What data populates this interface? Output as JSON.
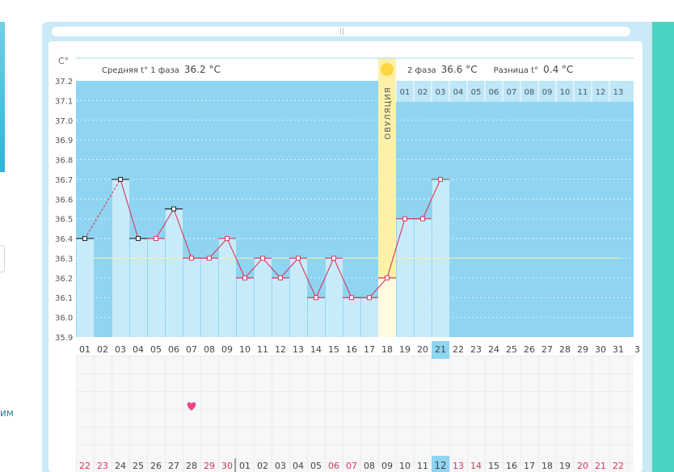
{
  "chart_data": {
    "type": "line",
    "y_unit": "C°",
    "ylim": [
      35.9,
      37.2
    ],
    "y_ticks": [
      "37.2",
      "37.1",
      "37.0",
      "36.9",
      "36.8",
      "36.7",
      "36.6",
      "36.5",
      "36.4",
      "36.3",
      "36.2",
      "36.1",
      "36.0",
      "35.9"
    ],
    "x": [
      "01",
      "02",
      "03",
      "04",
      "05",
      "06",
      "07",
      "08",
      "09",
      "10",
      "11",
      "12",
      "13",
      "14",
      "15",
      "16",
      "17",
      "18",
      "19",
      "20",
      "21",
      "22",
      "23",
      "24",
      "25",
      "26",
      "27",
      "28",
      "29",
      "30",
      "31"
    ],
    "values": [
      36.4,
      null,
      36.7,
      36.4,
      36.4,
      36.55,
      36.3,
      36.3,
      36.4,
      36.2,
      36.3,
      36.2,
      36.3,
      36.1,
      36.3,
      36.1,
      36.1,
      36.2,
      36.5,
      36.5,
      36.7,
      null,
      null,
      null,
      null,
      null,
      null,
      null,
      null,
      null,
      null
    ],
    "black_markers": [
      "01",
      "03",
      "04",
      "06"
    ],
    "dashed_segment": [
      "01",
      "03"
    ],
    "highlight_day": "21",
    "coverline": 36.3,
    "ovulation": {
      "day": "18",
      "label": "ОВУЛЯЦИЯ"
    },
    "phase1": {
      "label": "Средняя t° 1 фаза",
      "value": "36.2 °C"
    },
    "phase2": {
      "label": "2 фаза",
      "value": "36.6 °C"
    },
    "difference": {
      "label": "Разница t°",
      "value": "0.4 °C"
    },
    "phase2_days": [
      "01",
      "02",
      "03",
      "04",
      "05",
      "06",
      "07",
      "08",
      "09",
      "10",
      "11",
      "12",
      "13"
    ],
    "x_overflow": "3",
    "heart_day": "07",
    "dates": {
      "labels": [
        "22",
        "23",
        "24",
        "25",
        "26",
        "27",
        "28",
        "29",
        "30",
        "01",
        "02",
        "03",
        "04",
        "05",
        "06",
        "07",
        "08",
        "09",
        "10",
        "11",
        "12",
        "13",
        "14",
        "15",
        "16",
        "17",
        "18",
        "19",
        "20",
        "21",
        "22"
      ],
      "red": [
        "22",
        "23",
        "29",
        "30",
        "06",
        "07",
        "13",
        "14",
        "20",
        "21"
      ],
      "highlight": "12",
      "month_break_before": "01"
    }
  },
  "side": {
    "left_text": "им"
  }
}
